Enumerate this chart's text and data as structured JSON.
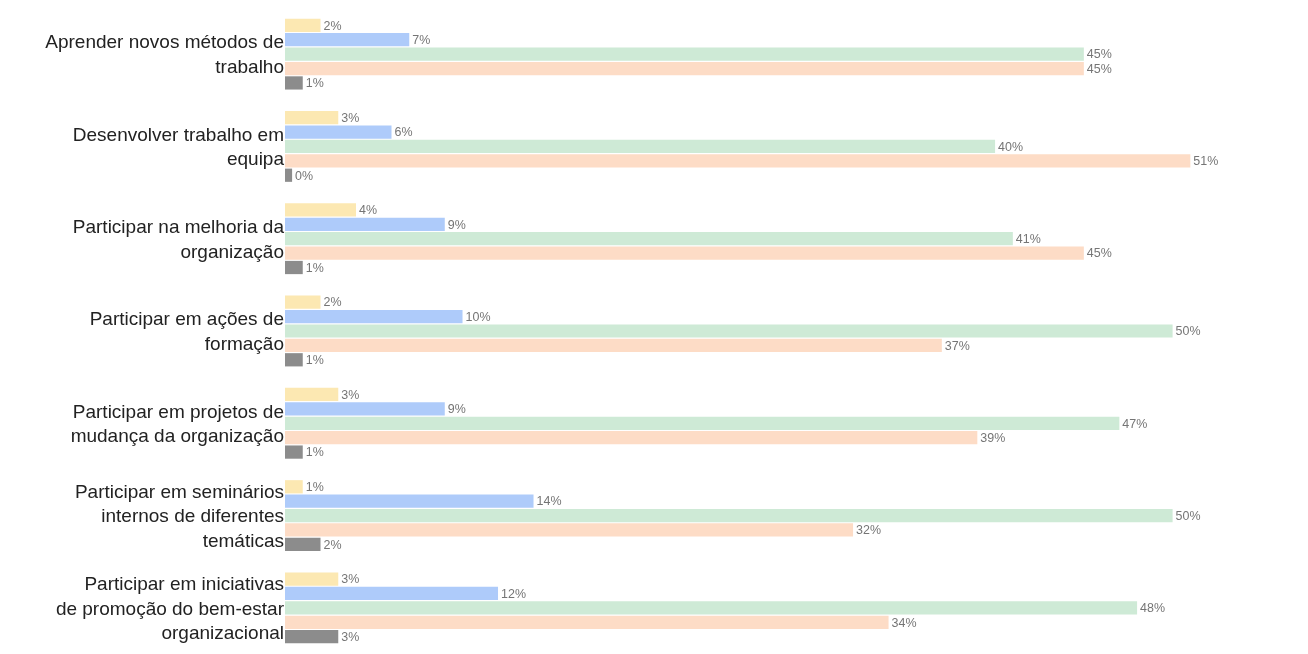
{
  "chart_data": {
    "type": "bar",
    "orientation": "horizontal",
    "legend": false,
    "categories": [
      "Aprender novos métodos de trabalho",
      "Desenvolver trabalho em equipa",
      "Participar na melhoria da organização",
      "Participar em ações de formação",
      "Participar em projetos de mudança da organização",
      "Participar em seminários internos de diferentes temáticas",
      "Participar em iniciativas de promoção do bem-estar organizacional"
    ],
    "series": [
      {
        "color": "#fce8b2",
        "values": [
          2,
          3,
          4,
          2,
          3,
          1,
          3
        ],
        "value_labels": [
          "2%",
          "3%",
          "4%",
          "2%",
          "3%",
          "1%",
          "3%"
        ]
      },
      {
        "color": "#aecbfa",
        "values": [
          7,
          6,
          9,
          10,
          9,
          14,
          12
        ],
        "value_labels": [
          "7%",
          "6%",
          "9%",
          "10%",
          "9%",
          "14%",
          "12%"
        ]
      },
      {
        "color": "#ceead6",
        "values": [
          45,
          40,
          41,
          50,
          47,
          50,
          48
        ],
        "value_labels": [
          "45%",
          "40%",
          "41%",
          "50%",
          "47%",
          "50%",
          "48%"
        ]
      },
      {
        "color": "#fddcc6",
        "values": [
          45,
          51,
          45,
          37,
          39,
          32,
          34
        ],
        "value_labels": [
          "45%",
          "51%",
          "45%",
          "37%",
          "39%",
          "32%",
          "34%"
        ]
      },
      {
        "color": "#8c8c8c",
        "values": [
          1,
          0.4,
          1,
          1,
          1,
          2,
          3
        ],
        "value_labels": [
          "1%",
          "0%",
          "1%",
          "1%",
          "1%",
          "2%",
          "3%"
        ]
      }
    ]
  }
}
